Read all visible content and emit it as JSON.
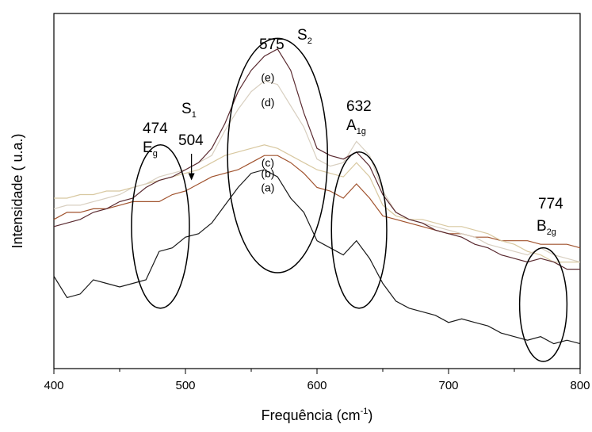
{
  "chart_data": {
    "type": "line",
    "xlabel": "Frequência (cm",
    "xlabel_sup": "-1",
    "xlabel_end": ")",
    "ylabel": "Intensidade ( u.a.)",
    "xlim": [
      400,
      800
    ],
    "ylim": [
      0,
      100
    ],
    "y_ticks_labeled": false,
    "grid": false,
    "legend": "none",
    "x_ticks": [
      400,
      500,
      600,
      700,
      800
    ],
    "series": [
      {
        "name": "(a)",
        "color": "#1a1a1a",
        "points": [
          [
            400,
            26
          ],
          [
            410,
            20
          ],
          [
            420,
            21
          ],
          [
            430,
            25
          ],
          [
            440,
            24
          ],
          [
            450,
            23
          ],
          [
            460,
            24
          ],
          [
            470,
            25
          ],
          [
            480,
            33
          ],
          [
            490,
            34
          ],
          [
            500,
            37
          ],
          [
            510,
            38
          ],
          [
            520,
            41
          ],
          [
            530,
            46
          ],
          [
            540,
            51
          ],
          [
            550,
            55
          ],
          [
            560,
            56
          ],
          [
            570,
            54
          ],
          [
            580,
            48
          ],
          [
            590,
            44
          ],
          [
            600,
            36
          ],
          [
            610,
            34
          ],
          [
            620,
            32
          ],
          [
            630,
            36
          ],
          [
            640,
            31
          ],
          [
            650,
            24
          ],
          [
            660,
            19
          ],
          [
            670,
            17
          ],
          [
            680,
            16
          ],
          [
            690,
            15
          ],
          [
            700,
            13
          ],
          [
            710,
            14
          ],
          [
            720,
            13
          ],
          [
            730,
            12
          ],
          [
            740,
            10
          ],
          [
            750,
            9
          ],
          [
            760,
            8
          ],
          [
            770,
            9
          ],
          [
            780,
            7
          ],
          [
            790,
            8
          ],
          [
            800,
            7
          ]
        ]
      },
      {
        "name": "(b)",
        "color": "#a0522d",
        "points": [
          [
            400,
            42
          ],
          [
            410,
            44
          ],
          [
            420,
            44
          ],
          [
            430,
            45
          ],
          [
            440,
            45
          ],
          [
            450,
            46
          ],
          [
            460,
            47
          ],
          [
            470,
            47
          ],
          [
            480,
            47
          ],
          [
            490,
            49
          ],
          [
            500,
            50
          ],
          [
            510,
            52
          ],
          [
            520,
            54
          ],
          [
            530,
            55
          ],
          [
            540,
            56
          ],
          [
            550,
            58
          ],
          [
            560,
            60
          ],
          [
            570,
            60
          ],
          [
            580,
            58
          ],
          [
            590,
            55
          ],
          [
            600,
            51
          ],
          [
            610,
            50
          ],
          [
            620,
            48
          ],
          [
            630,
            52
          ],
          [
            640,
            48
          ],
          [
            650,
            43
          ],
          [
            660,
            42
          ],
          [
            670,
            41
          ],
          [
            680,
            40
          ],
          [
            690,
            39
          ],
          [
            700,
            38
          ],
          [
            710,
            38
          ],
          [
            720,
            37
          ],
          [
            730,
            37
          ],
          [
            740,
            36
          ],
          [
            750,
            36
          ],
          [
            760,
            36
          ],
          [
            770,
            35
          ],
          [
            780,
            35
          ],
          [
            790,
            35
          ],
          [
            800,
            34
          ]
        ]
      },
      {
        "name": "(c)",
        "color": "#d8c8a0",
        "points": [
          [
            400,
            48
          ],
          [
            410,
            48
          ],
          [
            420,
            49
          ],
          [
            430,
            49
          ],
          [
            440,
            50
          ],
          [
            450,
            50
          ],
          [
            460,
            51
          ],
          [
            470,
            52
          ],
          [
            480,
            53
          ],
          [
            490,
            54
          ],
          [
            500,
            55
          ],
          [
            510,
            56
          ],
          [
            520,
            58
          ],
          [
            530,
            60
          ],
          [
            540,
            61
          ],
          [
            550,
            62
          ],
          [
            560,
            63
          ],
          [
            570,
            62
          ],
          [
            580,
            60
          ],
          [
            590,
            58
          ],
          [
            600,
            56
          ],
          [
            610,
            55
          ],
          [
            620,
            54
          ],
          [
            630,
            58
          ],
          [
            640,
            54
          ],
          [
            650,
            46
          ],
          [
            660,
            43
          ],
          [
            670,
            42
          ],
          [
            680,
            42
          ],
          [
            690,
            41
          ],
          [
            700,
            40
          ],
          [
            710,
            40
          ],
          [
            720,
            39
          ],
          [
            730,
            38
          ],
          [
            740,
            36
          ],
          [
            750,
            35
          ],
          [
            760,
            33
          ],
          [
            770,
            32
          ],
          [
            780,
            30
          ],
          [
            790,
            30
          ],
          [
            800,
            30
          ]
        ]
      },
      {
        "name": "(d)",
        "color": "#d8cfc0",
        "points": [
          [
            400,
            45
          ],
          [
            410,
            46
          ],
          [
            420,
            46
          ],
          [
            430,
            47
          ],
          [
            440,
            48
          ],
          [
            450,
            49
          ],
          [
            460,
            51
          ],
          [
            470,
            52
          ],
          [
            480,
            54
          ],
          [
            490,
            55
          ],
          [
            500,
            56
          ],
          [
            510,
            58
          ],
          [
            520,
            60
          ],
          [
            530,
            67
          ],
          [
            540,
            73
          ],
          [
            550,
            78
          ],
          [
            560,
            81
          ],
          [
            570,
            80
          ],
          [
            580,
            74
          ],
          [
            590,
            68
          ],
          [
            600,
            59
          ],
          [
            610,
            57
          ],
          [
            620,
            58
          ],
          [
            630,
            64
          ],
          [
            640,
            60
          ],
          [
            650,
            50
          ],
          [
            660,
            44
          ],
          [
            670,
            42
          ],
          [
            680,
            41
          ],
          [
            690,
            40
          ],
          [
            700,
            39
          ],
          [
            710,
            38
          ],
          [
            720,
            37
          ],
          [
            730,
            35
          ],
          [
            740,
            34
          ],
          [
            750,
            33
          ],
          [
            760,
            32
          ],
          [
            770,
            34
          ],
          [
            780,
            32
          ],
          [
            790,
            31
          ],
          [
            800,
            30
          ]
        ]
      },
      {
        "name": "(e)",
        "color": "#5a2a30",
        "points": [
          [
            400,
            40
          ],
          [
            410,
            41
          ],
          [
            420,
            42
          ],
          [
            430,
            44
          ],
          [
            440,
            45
          ],
          [
            450,
            47
          ],
          [
            460,
            48
          ],
          [
            470,
            51
          ],
          [
            480,
            53
          ],
          [
            490,
            54
          ],
          [
            500,
            56
          ],
          [
            510,
            58
          ],
          [
            520,
            62
          ],
          [
            530,
            69
          ],
          [
            540,
            78
          ],
          [
            550,
            84
          ],
          [
            560,
            88
          ],
          [
            570,
            90
          ],
          [
            580,
            84
          ],
          [
            590,
            72
          ],
          [
            600,
            62
          ],
          [
            610,
            60
          ],
          [
            620,
            59
          ],
          [
            630,
            61
          ],
          [
            640,
            57
          ],
          [
            650,
            49
          ],
          [
            660,
            44
          ],
          [
            670,
            42
          ],
          [
            680,
            41
          ],
          [
            690,
            39
          ],
          [
            700,
            38
          ],
          [
            710,
            37
          ],
          [
            720,
            35
          ],
          [
            730,
            34
          ],
          [
            740,
            32
          ],
          [
            750,
            31
          ],
          [
            760,
            30
          ],
          [
            770,
            31
          ],
          [
            780,
            30
          ],
          [
            790,
            28
          ],
          [
            800,
            28
          ]
        ]
      }
    ],
    "annotations": [
      {
        "peak": "474",
        "label": "E",
        "sub": "g",
        "x": 481,
        "ellipse_halfwidth": 22,
        "ellipse_ycenter": 40,
        "ellipse_halfheight": 23
      },
      {
        "peak": "504",
        "label": "S",
        "sub": "1",
        "x": 504,
        "arrow_to_y": 53
      },
      {
        "peak": "575",
        "label": "S",
        "sub": "2",
        "x": 570,
        "ellipse_halfwidth": 38,
        "ellipse_ycenter": 60,
        "ellipse_halfheight": 33
      },
      {
        "peak": "632",
        "label": "A",
        "sub": "1g",
        "x": 632,
        "ellipse_halfwidth": 21,
        "ellipse_ycenter": 39,
        "ellipse_halfheight": 22
      },
      {
        "peak": "774",
        "label": "B",
        "sub": "2g",
        "x": 772,
        "ellipse_halfwidth": 18,
        "ellipse_ycenter": 18,
        "ellipse_halfheight": 16
      }
    ]
  }
}
